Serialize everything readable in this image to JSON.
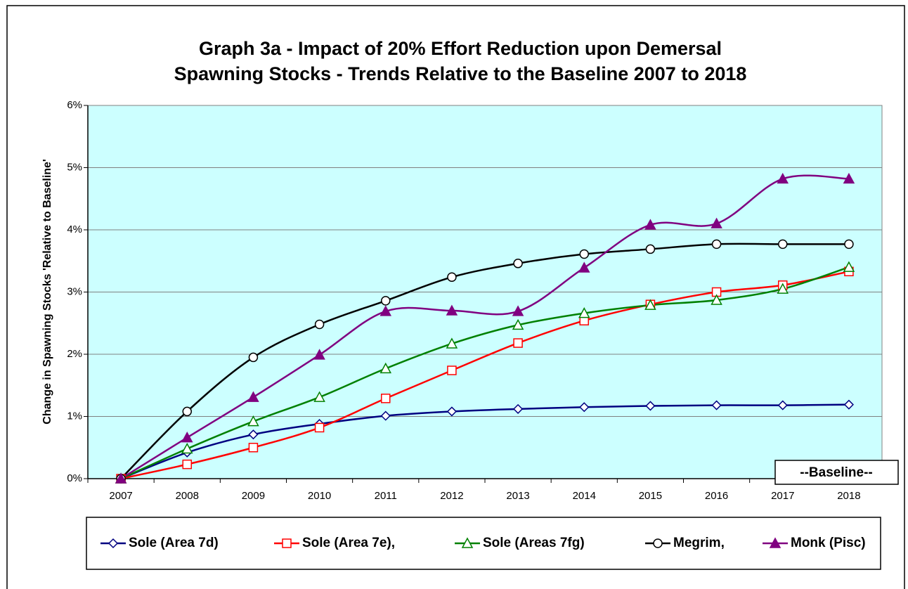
{
  "chart_data": {
    "type": "line",
    "title": [
      "Graph 3a - Impact of 20% Effort Reduction upon Demersal",
      "Spawning Stocks - Trends Relative to the Baseline 2007 to 2018"
    ],
    "y_label": "Change in Spawning Stocks 'Relative to Baseline'",
    "annotation": "--Baseline--",
    "categories": [
      "2007",
      "2008",
      "2009",
      "2010",
      "2011",
      "2012",
      "2013",
      "2014",
      "2015",
      "2016",
      "2017",
      "2018"
    ],
    "ylim": [
      0,
      6
    ],
    "yticks": [
      {
        "value": 0,
        "label": "0%"
      },
      {
        "value": 1,
        "label": "1%"
      },
      {
        "value": 2,
        "label": "2%"
      },
      {
        "value": 3,
        "label": "3%"
      },
      {
        "value": 4,
        "label": "4%"
      },
      {
        "value": 5,
        "label": "5%"
      },
      {
        "value": 6,
        "label": "6%"
      }
    ],
    "grid": true,
    "series": [
      {
        "name": "Sole (Area 7d)",
        "color": "#000080",
        "marker": "diamond",
        "filled": false,
        "values": [
          0,
          0.42,
          0.71,
          0.88,
          1.01,
          1.08,
          1.12,
          1.15,
          1.17,
          1.18,
          1.18,
          1.19
        ]
      },
      {
        "name": "Sole (Area 7e),",
        "color": "#ff0000",
        "marker": "square",
        "filled": false,
        "values": [
          0,
          0.23,
          0.5,
          0.82,
          1.29,
          1.74,
          2.18,
          2.54,
          2.8,
          3.0,
          3.11,
          3.33
        ]
      },
      {
        "name": "Sole (Areas 7fg)",
        "color": "#008000",
        "marker": "triangle",
        "filled": false,
        "values": [
          0,
          0.48,
          0.92,
          1.31,
          1.77,
          2.17,
          2.47,
          2.66,
          2.79,
          2.87,
          3.05,
          3.4
        ]
      },
      {
        "name": "Megrim,",
        "color": "#000000",
        "marker": "circle",
        "filled": false,
        "values": [
          0,
          1.08,
          1.95,
          2.48,
          2.86,
          3.24,
          3.46,
          3.61,
          3.69,
          3.77,
          3.77,
          3.77
        ]
      },
      {
        "name": "Monk (Pisc)",
        "color": "#800080",
        "marker": "triangle",
        "filled": true,
        "values": [
          0,
          0.66,
          1.31,
          1.99,
          2.69,
          2.7,
          2.69,
          3.39,
          4.08,
          4.1,
          4.82,
          4.82
        ]
      }
    ]
  }
}
